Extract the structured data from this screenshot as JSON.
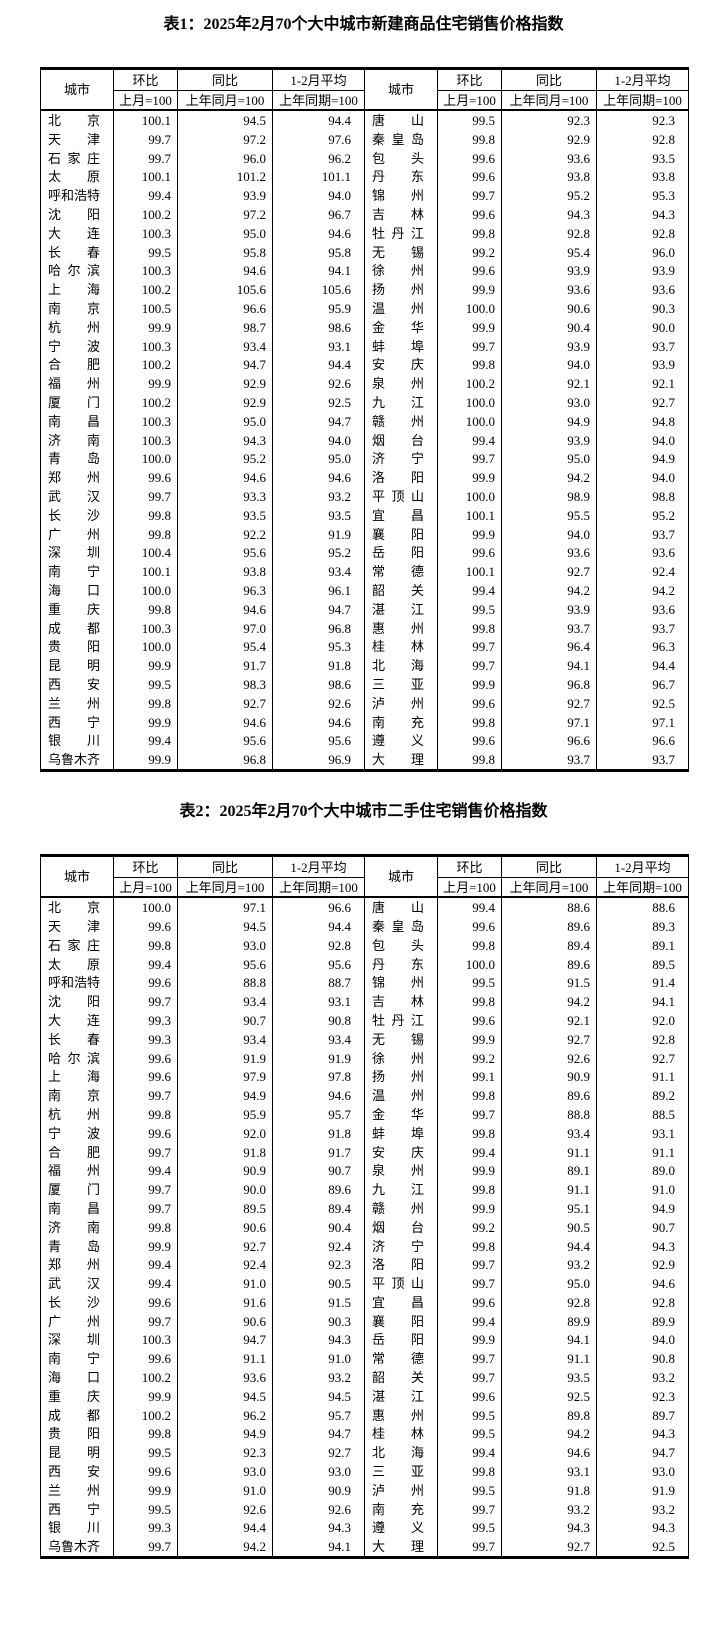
{
  "page": {
    "background_color": "#ffffff",
    "text_color": "#000000",
    "border_color": "#000000"
  },
  "headers": {
    "city": "城市",
    "mom": "环比",
    "mom_base": "上月=100",
    "yoy": "同比",
    "yoy_base": "上年同月=100",
    "avg": "1-2月平均",
    "avg_base": "上年同期=100"
  },
  "table1": {
    "title": "表1：2025年2月70个大中城市新建商品住宅销售价格指数",
    "rows": [
      [
        "北京",
        "100.1",
        "94.5",
        "94.4",
        "唐山",
        "99.5",
        "92.3",
        "92.3"
      ],
      [
        "天津",
        "99.7",
        "97.2",
        "97.6",
        "秦皇岛",
        "99.8",
        "92.9",
        "92.8"
      ],
      [
        "石家庄",
        "99.7",
        "96.0",
        "96.2",
        "包头",
        "99.6",
        "93.6",
        "93.5"
      ],
      [
        "太原",
        "100.1",
        "101.2",
        "101.1",
        "丹东",
        "99.6",
        "93.8",
        "93.8"
      ],
      [
        "呼和浩特",
        "99.4",
        "93.9",
        "94.0",
        "锦州",
        "99.7",
        "95.2",
        "95.3"
      ],
      [
        "沈阳",
        "100.2",
        "97.2",
        "96.7",
        "吉林",
        "99.6",
        "94.3",
        "94.3"
      ],
      [
        "大连",
        "100.3",
        "95.0",
        "94.6",
        "牡丹江",
        "99.8",
        "92.8",
        "92.8"
      ],
      [
        "长春",
        "99.5",
        "95.8",
        "95.8",
        "无锡",
        "99.2",
        "95.4",
        "96.0"
      ],
      [
        "哈尔滨",
        "100.3",
        "94.6",
        "94.1",
        "徐州",
        "99.6",
        "93.9",
        "93.9"
      ],
      [
        "上海",
        "100.2",
        "105.6",
        "105.6",
        "扬州",
        "99.9",
        "93.6",
        "93.6"
      ],
      [
        "南京",
        "100.5",
        "96.6",
        "95.9",
        "温州",
        "100.0",
        "90.6",
        "90.3"
      ],
      [
        "杭州",
        "99.9",
        "98.7",
        "98.6",
        "金华",
        "99.9",
        "90.4",
        "90.0"
      ],
      [
        "宁波",
        "100.3",
        "93.4",
        "93.1",
        "蚌埠",
        "99.7",
        "93.9",
        "93.7"
      ],
      [
        "合肥",
        "100.2",
        "94.7",
        "94.4",
        "安庆",
        "99.8",
        "94.0",
        "93.9"
      ],
      [
        "福州",
        "99.9",
        "92.9",
        "92.6",
        "泉州",
        "100.2",
        "92.1",
        "92.1"
      ],
      [
        "厦门",
        "100.2",
        "92.9",
        "92.5",
        "九江",
        "100.0",
        "93.0",
        "92.7"
      ],
      [
        "南昌",
        "100.3",
        "95.0",
        "94.7",
        "赣州",
        "100.0",
        "94.9",
        "94.8"
      ],
      [
        "济南",
        "100.3",
        "94.3",
        "94.0",
        "烟台",
        "99.4",
        "93.9",
        "94.0"
      ],
      [
        "青岛",
        "100.0",
        "95.2",
        "95.0",
        "济宁",
        "99.7",
        "95.0",
        "94.9"
      ],
      [
        "郑州",
        "99.6",
        "94.6",
        "94.6",
        "洛阳",
        "99.9",
        "94.2",
        "94.0"
      ],
      [
        "武汉",
        "99.7",
        "93.3",
        "93.2",
        "平顶山",
        "100.0",
        "98.9",
        "98.8"
      ],
      [
        "长沙",
        "99.8",
        "93.5",
        "93.5",
        "宜昌",
        "100.1",
        "95.5",
        "95.2"
      ],
      [
        "广州",
        "99.8",
        "92.2",
        "91.9",
        "襄阳",
        "99.9",
        "94.0",
        "93.7"
      ],
      [
        "深圳",
        "100.4",
        "95.6",
        "95.2",
        "岳阳",
        "99.6",
        "93.6",
        "93.6"
      ],
      [
        "南宁",
        "100.1",
        "93.8",
        "93.4",
        "常德",
        "100.1",
        "92.7",
        "92.4"
      ],
      [
        "海口",
        "100.0",
        "96.3",
        "96.1",
        "韶关",
        "99.4",
        "94.2",
        "94.2"
      ],
      [
        "重庆",
        "99.8",
        "94.6",
        "94.7",
        "湛江",
        "99.5",
        "93.9",
        "93.6"
      ],
      [
        "成都",
        "100.3",
        "97.0",
        "96.8",
        "惠州",
        "99.8",
        "93.7",
        "93.7"
      ],
      [
        "贵阳",
        "100.0",
        "95.4",
        "95.3",
        "桂林",
        "99.7",
        "96.4",
        "96.3"
      ],
      [
        "昆明",
        "99.9",
        "91.7",
        "91.8",
        "北海",
        "99.7",
        "94.1",
        "94.4"
      ],
      [
        "西安",
        "99.5",
        "98.3",
        "98.6",
        "三亚",
        "99.9",
        "96.8",
        "96.7"
      ],
      [
        "兰州",
        "99.8",
        "92.7",
        "92.6",
        "泸州",
        "99.6",
        "92.7",
        "92.5"
      ],
      [
        "西宁",
        "99.9",
        "94.6",
        "94.6",
        "南充",
        "99.8",
        "97.1",
        "97.1"
      ],
      [
        "银川",
        "99.4",
        "95.6",
        "95.6",
        "遵义",
        "99.6",
        "96.6",
        "96.6"
      ],
      [
        "乌鲁木齐",
        "99.9",
        "96.8",
        "96.9",
        "大理",
        "99.8",
        "93.7",
        "93.7"
      ]
    ]
  },
  "table2": {
    "title": "表2：2025年2月70个大中城市二手住宅销售价格指数",
    "rows": [
      [
        "北京",
        "100.0",
        "97.1",
        "96.6",
        "唐山",
        "99.4",
        "88.6",
        "88.6"
      ],
      [
        "天津",
        "99.6",
        "94.5",
        "94.4",
        "秦皇岛",
        "99.6",
        "89.6",
        "89.3"
      ],
      [
        "石家庄",
        "99.8",
        "93.0",
        "92.8",
        "包头",
        "99.8",
        "89.4",
        "89.1"
      ],
      [
        "太原",
        "99.4",
        "95.6",
        "95.6",
        "丹东",
        "100.0",
        "89.6",
        "89.5"
      ],
      [
        "呼和浩特",
        "99.6",
        "88.8",
        "88.7",
        "锦州",
        "99.5",
        "91.5",
        "91.4"
      ],
      [
        "沈阳",
        "99.7",
        "93.4",
        "93.1",
        "吉林",
        "99.8",
        "94.2",
        "94.1"
      ],
      [
        "大连",
        "99.3",
        "90.7",
        "90.8",
        "牡丹江",
        "99.6",
        "92.1",
        "92.0"
      ],
      [
        "长春",
        "99.3",
        "93.4",
        "93.4",
        "无锡",
        "99.9",
        "92.7",
        "92.8"
      ],
      [
        "哈尔滨",
        "99.6",
        "91.9",
        "91.9",
        "徐州",
        "99.2",
        "92.6",
        "92.7"
      ],
      [
        "上海",
        "99.6",
        "97.9",
        "97.8",
        "扬州",
        "99.1",
        "90.9",
        "91.1"
      ],
      [
        "南京",
        "99.7",
        "94.9",
        "94.6",
        "温州",
        "99.8",
        "89.6",
        "89.2"
      ],
      [
        "杭州",
        "99.8",
        "95.9",
        "95.7",
        "金华",
        "99.7",
        "88.8",
        "88.5"
      ],
      [
        "宁波",
        "99.6",
        "92.0",
        "91.8",
        "蚌埠",
        "99.8",
        "93.4",
        "93.1"
      ],
      [
        "合肥",
        "99.7",
        "91.8",
        "91.7",
        "安庆",
        "99.4",
        "91.1",
        "91.1"
      ],
      [
        "福州",
        "99.4",
        "90.9",
        "90.7",
        "泉州",
        "99.9",
        "89.1",
        "89.0"
      ],
      [
        "厦门",
        "99.7",
        "90.0",
        "89.6",
        "九江",
        "99.8",
        "91.1",
        "91.0"
      ],
      [
        "南昌",
        "99.7",
        "89.5",
        "89.4",
        "赣州",
        "99.9",
        "95.1",
        "94.9"
      ],
      [
        "济南",
        "99.8",
        "90.6",
        "90.4",
        "烟台",
        "99.2",
        "90.5",
        "90.7"
      ],
      [
        "青岛",
        "99.9",
        "92.7",
        "92.4",
        "济宁",
        "99.8",
        "94.4",
        "94.3"
      ],
      [
        "郑州",
        "99.4",
        "92.4",
        "92.3",
        "洛阳",
        "99.7",
        "93.2",
        "92.9"
      ],
      [
        "武汉",
        "99.4",
        "91.0",
        "90.5",
        "平顶山",
        "99.7",
        "95.0",
        "94.6"
      ],
      [
        "长沙",
        "99.6",
        "91.6",
        "91.5",
        "宜昌",
        "99.6",
        "92.8",
        "92.8"
      ],
      [
        "广州",
        "99.7",
        "90.6",
        "90.3",
        "襄阳",
        "99.4",
        "89.9",
        "89.9"
      ],
      [
        "深圳",
        "100.3",
        "94.7",
        "94.3",
        "岳阳",
        "99.9",
        "94.1",
        "94.0"
      ],
      [
        "南宁",
        "99.6",
        "91.1",
        "91.0",
        "常德",
        "99.7",
        "91.1",
        "90.8"
      ],
      [
        "海口",
        "100.2",
        "93.6",
        "93.2",
        "韶关",
        "99.7",
        "93.5",
        "93.2"
      ],
      [
        "重庆",
        "99.9",
        "94.5",
        "94.5",
        "湛江",
        "99.6",
        "92.5",
        "92.3"
      ],
      [
        "成都",
        "100.2",
        "96.2",
        "95.7",
        "惠州",
        "99.5",
        "89.8",
        "89.7"
      ],
      [
        "贵阳",
        "99.8",
        "94.9",
        "94.7",
        "桂林",
        "99.5",
        "94.2",
        "94.3"
      ],
      [
        "昆明",
        "99.5",
        "92.3",
        "92.7",
        "北海",
        "99.4",
        "94.6",
        "94.7"
      ],
      [
        "西安",
        "99.6",
        "93.0",
        "93.0",
        "三亚",
        "99.8",
        "93.1",
        "93.0"
      ],
      [
        "兰州",
        "99.9",
        "91.0",
        "90.9",
        "泸州",
        "99.5",
        "91.8",
        "91.9"
      ],
      [
        "西宁",
        "99.5",
        "92.6",
        "92.6",
        "南充",
        "99.7",
        "93.2",
        "93.2"
      ],
      [
        "银川",
        "99.3",
        "94.4",
        "94.3",
        "遵义",
        "99.5",
        "94.3",
        "94.3"
      ],
      [
        "乌鲁木齐",
        "99.7",
        "94.2",
        "94.1",
        "大理",
        "99.7",
        "92.7",
        "92.5"
      ]
    ]
  }
}
